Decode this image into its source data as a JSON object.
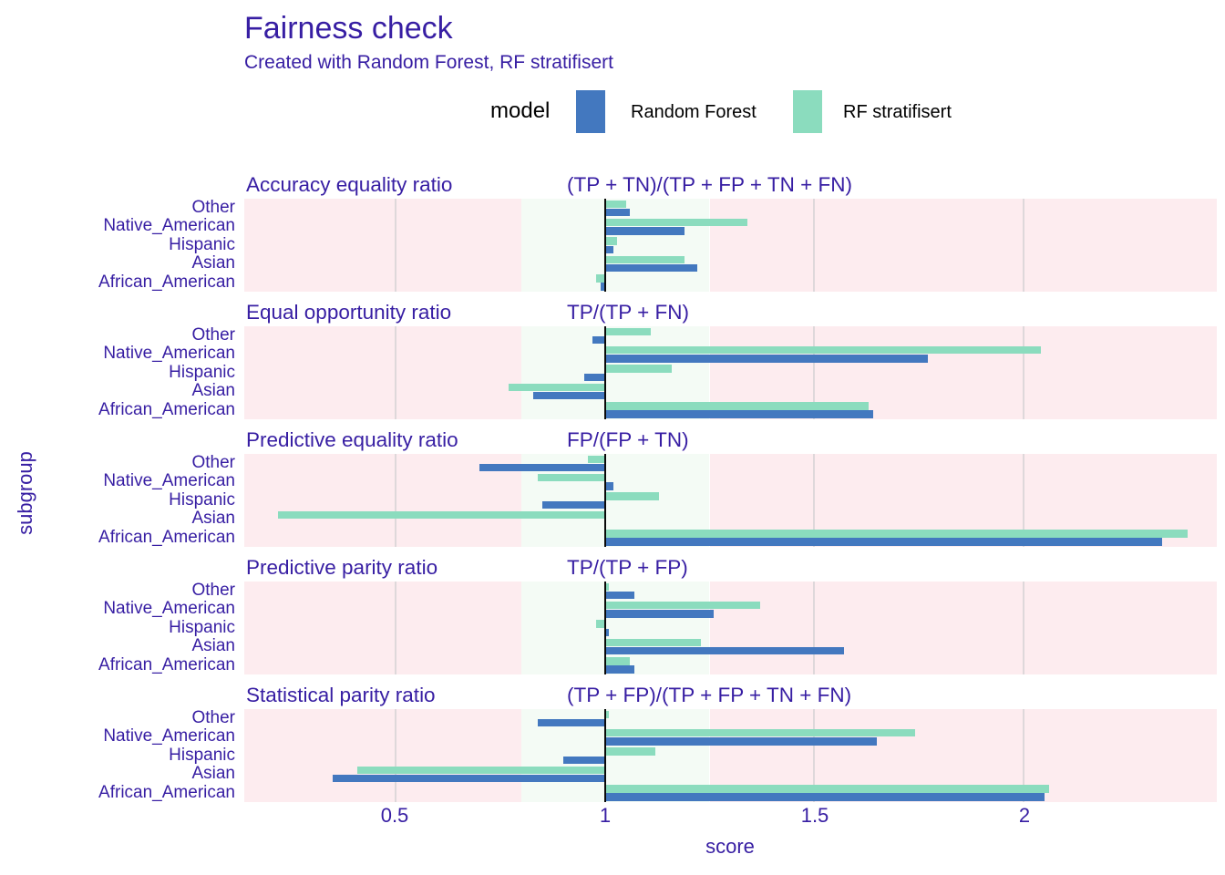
{
  "header": {
    "title": "Fairness check",
    "subtitle": "Created with Random Forest, RF stratifisert"
  },
  "legend": {
    "label": "model",
    "items": [
      {
        "name": "Random Forest",
        "color": "#4378bf"
      },
      {
        "name": "RF stratifisert",
        "color": "#8bdcbe"
      }
    ]
  },
  "colors": {
    "random_forest": "#4378bf",
    "rf_stratifisert": "#8bdcbe",
    "fair_zone_bg": "#f4fbf5",
    "unfair_zone_bg": "#fdecef",
    "gridline": "#ded8da",
    "baseline": "#0a0a0a",
    "text": "#371ea3"
  },
  "chart_data": {
    "type": "bar",
    "orientation": "horizontal",
    "baseline": 1,
    "x_domain": [
      0.14,
      2.46
    ],
    "x_ticks": [
      0.5,
      1,
      1.5,
      2
    ],
    "x_tick_labels": [
      "0.5",
      "1",
      "1.5",
      "2"
    ],
    "xlabel": "score",
    "ylabel": "subgroup",
    "fair_zone": [
      0.8,
      1.25
    ],
    "grid": "on",
    "legend_position": "top",
    "categories": [
      "Other",
      "Native_American",
      "Hispanic",
      "Asian",
      "African_American"
    ],
    "panels": [
      {
        "metric": "Accuracy equality ratio",
        "formula": "(TP + TN)/(TP + FP + TN + FN)",
        "series": [
          {
            "name": "RF stratifisert",
            "values": [
              1.05,
              1.34,
              1.03,
              1.19,
              0.98
            ]
          },
          {
            "name": "Random Forest",
            "values": [
              1.06,
              1.19,
              1.02,
              1.22,
              0.99
            ]
          }
        ]
      },
      {
        "metric": "Equal opportunity ratio",
        "formula": "TP/(TP + FN)",
        "series": [
          {
            "name": "RF stratifisert",
            "values": [
              1.11,
              2.04,
              1.16,
              0.77,
              1.63
            ]
          },
          {
            "name": "Random Forest",
            "values": [
              0.97,
              1.77,
              0.95,
              0.83,
              1.64
            ]
          }
        ]
      },
      {
        "metric": "Predictive equality ratio",
        "formula": "FP/(FP + TN)",
        "series": [
          {
            "name": "RF stratifisert",
            "values": [
              0.96,
              0.84,
              1.13,
              0.22,
              2.39
            ]
          },
          {
            "name": "Random Forest",
            "values": [
              0.7,
              1.02,
              0.85,
              1.0,
              2.33
            ]
          }
        ]
      },
      {
        "metric": "Predictive parity ratio",
        "formula": "TP/(TP + FP)",
        "series": [
          {
            "name": "RF stratifisert",
            "values": [
              1.01,
              1.37,
              0.98,
              1.23,
              1.06
            ]
          },
          {
            "name": "Random Forest",
            "values": [
              1.07,
              1.26,
              1.01,
              1.57,
              1.07
            ]
          }
        ]
      },
      {
        "metric": "Statistical parity ratio",
        "formula": "(TP + FP)/(TP + FP + TN + FN)",
        "series": [
          {
            "name": "RF stratifisert",
            "values": [
              1.01,
              1.74,
              1.12,
              0.41,
              2.06
            ]
          },
          {
            "name": "Random Forest",
            "values": [
              0.84,
              1.65,
              0.9,
              0.35,
              2.05
            ]
          }
        ]
      }
    ]
  }
}
